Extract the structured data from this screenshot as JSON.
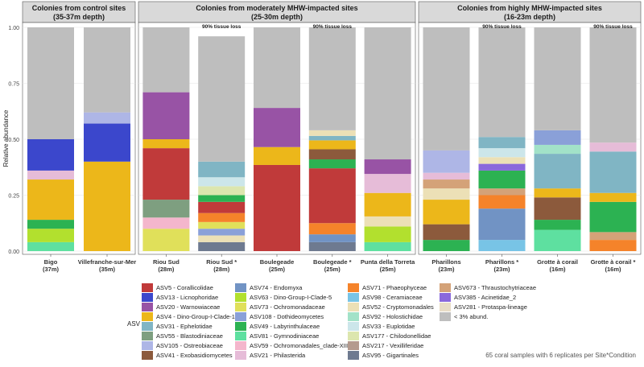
{
  "chart_data": {
    "type": "bar",
    "stacked": true,
    "ylabel": "Relative abundance",
    "ylim": [
      0,
      1
    ],
    "yticks": [
      "0.00",
      "0.25",
      "0.50",
      "0.75",
      "1.00"
    ],
    "legend_title": "ASV",
    "footnote": "65 coral samples with 6 replicates per Site*Condition",
    "legend": [
      {
        "key": "asv5",
        "label": "ASV5 - Corallicolidae",
        "color": "#c03a3a"
      },
      {
        "key": "asv13",
        "label": "ASV13 - Licnophoridae",
        "color": "#3b47cc"
      },
      {
        "key": "asv20",
        "label": "ASV20 - Warnowiaceae",
        "color": "#9853a5"
      },
      {
        "key": "asv4",
        "label": "ASV4 - Dino-Group-I-Clade-1",
        "color": "#ecb71a"
      },
      {
        "key": "asv31",
        "label": "ASV31 - Ephelotidae",
        "color": "#80b5c4"
      },
      {
        "key": "asv55",
        "label": "ASV55 - Blastodiniaceae",
        "color": "#7e9f80"
      },
      {
        "key": "asv105",
        "label": "ASV105 - Ostreobiaceae",
        "color": "#aeb6e6"
      },
      {
        "key": "asv41",
        "label": "ASV41 - Exobasidiomycetes",
        "color": "#8c5a3c"
      },
      {
        "key": "asv74",
        "label": "ASV74 - Endomyxa",
        "color": "#7193c4"
      },
      {
        "key": "asv63",
        "label": "ASV63 - Dino-Group-I-Clade-5",
        "color": "#b2e02e"
      },
      {
        "key": "asv73",
        "label": "ASV73 - Ochromonadaceae",
        "color": "#e0e05a"
      },
      {
        "key": "asv108",
        "label": "ASV108 - Dothideomycetes",
        "color": "#8aa0d8"
      },
      {
        "key": "asv49",
        "label": "ASV49 - Labyrinthulaceae",
        "color": "#2cb252"
      },
      {
        "key": "asv81",
        "label": "ASV81 - Gymnodiniaceae",
        "color": "#5ee0a0"
      },
      {
        "key": "asv59",
        "label": "ASV59 - Ochromonadales_clade-XIII",
        "color": "#f4b6cc"
      },
      {
        "key": "asv21",
        "label": "ASV21 - Philasterida",
        "color": "#e6bcd8"
      },
      {
        "key": "asv71",
        "label": "ASV71 - Phaeophyceae",
        "color": "#f5832a"
      },
      {
        "key": "asv98",
        "label": "ASV98 - Ceramiaceae",
        "color": "#78c4e6"
      },
      {
        "key": "asv52",
        "label": "ASV52 - Cryptomonadales",
        "color": "#ece0b6"
      },
      {
        "key": "asv92",
        "label": "ASV92 - Holostichidae",
        "color": "#a2e2c8"
      },
      {
        "key": "asv33",
        "label": "ASV33 - Euplotidae",
        "color": "#cce6ea"
      },
      {
        "key": "asv177",
        "label": "ASV177 - Chilodonellidae",
        "color": "#dce6ae"
      },
      {
        "key": "asv217",
        "label": "ASV217 - Vexilliferidae",
        "color": "#b49a8e"
      },
      {
        "key": "asv95",
        "label": "ASV95 - Gigartinales",
        "color": "#6e7a90"
      },
      {
        "key": "asv673",
        "label": "ASV673 - Thraustochytriaceae",
        "color": "#d4a278"
      },
      {
        "key": "asv385",
        "label": "ASV385 - Acinetidae_2",
        "color": "#8a68dc"
      },
      {
        "key": "asv281",
        "label": "ASV281 - Protaspa-lineage",
        "color": "#e8dcc6"
      },
      {
        "key": "other",
        "label": "< 3% abund.",
        "color": "#bebebe"
      }
    ],
    "panels": [
      {
        "title_line1": "Colonies from control sites",
        "title_line2": "(35-37m depth)",
        "bars": [
          {
            "label_line1": "Bigo",
            "label_line2": "(37m)",
            "annotation": "",
            "segments": [
              [
                "asv81",
                0.04
              ],
              [
                "asv63",
                0.06
              ],
              [
                "asv49",
                0.04
              ],
              [
                "asv4",
                0.18
              ],
              [
                "asv21",
                0.04
              ],
              [
                "asv13",
                0.14
              ],
              [
                "other",
                0.5
              ]
            ]
          },
          {
            "label_line1": "Villefranche-sur-Mer",
            "label_line2": "(35m)",
            "annotation": "",
            "segments": [
              [
                "asv4",
                0.4
              ],
              [
                "asv13",
                0.17
              ],
              [
                "asv105",
                0.05
              ],
              [
                "other",
                0.38
              ]
            ]
          }
        ]
      },
      {
        "title_line1": "Colonies from moderately MHW-impacted sites",
        "title_line2": "(25-30m depth)",
        "bars": [
          {
            "label_line1": "Riou Sud",
            "label_line2": "(28m)",
            "annotation": "",
            "segments": [
              [
                "asv73",
                0.1
              ],
              [
                "asv59",
                0.05
              ],
              [
                "asv55",
                0.08
              ],
              [
                "asv5",
                0.23
              ],
              [
                "asv4",
                0.04
              ],
              [
                "asv20",
                0.21
              ],
              [
                "other",
                0.29
              ]
            ]
          },
          {
            "label_line1": "Riou Sud *",
            "label_line2": "(28m)",
            "annotation": "90% tissue loss",
            "segments": [
              [
                "asv95",
                0.04
              ],
              [
                "asv52",
                0.03
              ],
              [
                "asv108",
                0.03
              ],
              [
                "asv73",
                0.03
              ],
              [
                "asv71",
                0.04
              ],
              [
                "asv5",
                0.05
              ],
              [
                "asv49",
                0.03
              ],
              [
                "asv177",
                0.04
              ],
              [
                "asv33",
                0.04
              ],
              [
                "asv31",
                0.07
              ],
              [
                "other",
                0.56
              ]
            ]
          },
          {
            "label_line1": "Boulegeade",
            "label_line2": "(25m)",
            "annotation": "",
            "segments": [
              [
                "asv5",
                0.385
              ],
              [
                "asv4",
                0.08
              ],
              [
                "asv20",
                0.175
              ],
              [
                "other",
                0.36
              ]
            ]
          },
          {
            "label_line1": "Boulegeade *",
            "label_line2": "(25m)",
            "annotation": "90% tissue loss",
            "segments": [
              [
                "asv95",
                0.04
              ],
              [
                "asv74",
                0.035
              ],
              [
                "asv71",
                0.05
              ],
              [
                "asv5",
                0.245
              ],
              [
                "asv49",
                0.04
              ],
              [
                "asv41",
                0.045
              ],
              [
                "asv4",
                0.04
              ],
              [
                "asv31",
                0.02
              ],
              [
                "asv52",
                0.025
              ],
              [
                "other",
                0.46
              ]
            ]
          },
          {
            "label_line1": "Punta della Torreta",
            "label_line2": "(25m)",
            "annotation": "",
            "segments": [
              [
                "asv81",
                0.04
              ],
              [
                "asv63",
                0.07
              ],
              [
                "asv52",
                0.045
              ],
              [
                "asv4",
                0.105
              ],
              [
                "asv21",
                0.085
              ],
              [
                "asv20",
                0.065
              ],
              [
                "other",
                0.59
              ]
            ]
          }
        ]
      },
      {
        "title_line1": "Colonies from highly MHW-impacted sites",
        "title_line2": "(16-23m depth)",
        "bars": [
          {
            "label_line1": "Pharillons",
            "label_line2": "(23m)",
            "annotation": "",
            "segments": [
              [
                "asv49",
                0.05
              ],
              [
                "asv41",
                0.07
              ],
              [
                "asv4",
                0.11
              ],
              [
                "asv52",
                0.05
              ],
              [
                "asv673",
                0.04
              ],
              [
                "asv21",
                0.03
              ],
              [
                "asv105",
                0.1
              ],
              [
                "other",
                0.55
              ]
            ]
          },
          {
            "label_line1": "Pharillons *",
            "label_line2": "(23m)",
            "annotation": "90% tissue loss",
            "segments": [
              [
                "asv98",
                0.05
              ],
              [
                "asv74",
                0.14
              ],
              [
                "asv71",
                0.06
              ],
              [
                "asv673",
                0.03
              ],
              [
                "asv49",
                0.08
              ],
              [
                "asv385",
                0.03
              ],
              [
                "asv52",
                0.03
              ],
              [
                "asv33",
                0.04
              ],
              [
                "asv31",
                0.05
              ],
              [
                "other",
                0.49
              ]
            ]
          },
          {
            "label_line1": "Grotte à corail",
            "label_line2": "(16m)",
            "annotation": "",
            "segments": [
              [
                "asv81",
                0.095
              ],
              [
                "asv49",
                0.045
              ],
              [
                "asv41",
                0.1
              ],
              [
                "asv4",
                0.04
              ],
              [
                "asv31",
                0.155
              ],
              [
                "asv92",
                0.04
              ],
              [
                "asv108",
                0.065
              ],
              [
                "other",
                0.46
              ]
            ]
          },
          {
            "label_line1": "Grotte à corail *",
            "label_line2": "(16m)",
            "annotation": "90% tissue loss",
            "segments": [
              [
                "asv71",
                0.05
              ],
              [
                "asv673",
                0.035
              ],
              [
                "asv49",
                0.135
              ],
              [
                "asv4",
                0.04
              ],
              [
                "asv31",
                0.185
              ],
              [
                "asv21",
                0.04
              ],
              [
                "other",
                0.515
              ]
            ]
          }
        ]
      }
    ]
  }
}
